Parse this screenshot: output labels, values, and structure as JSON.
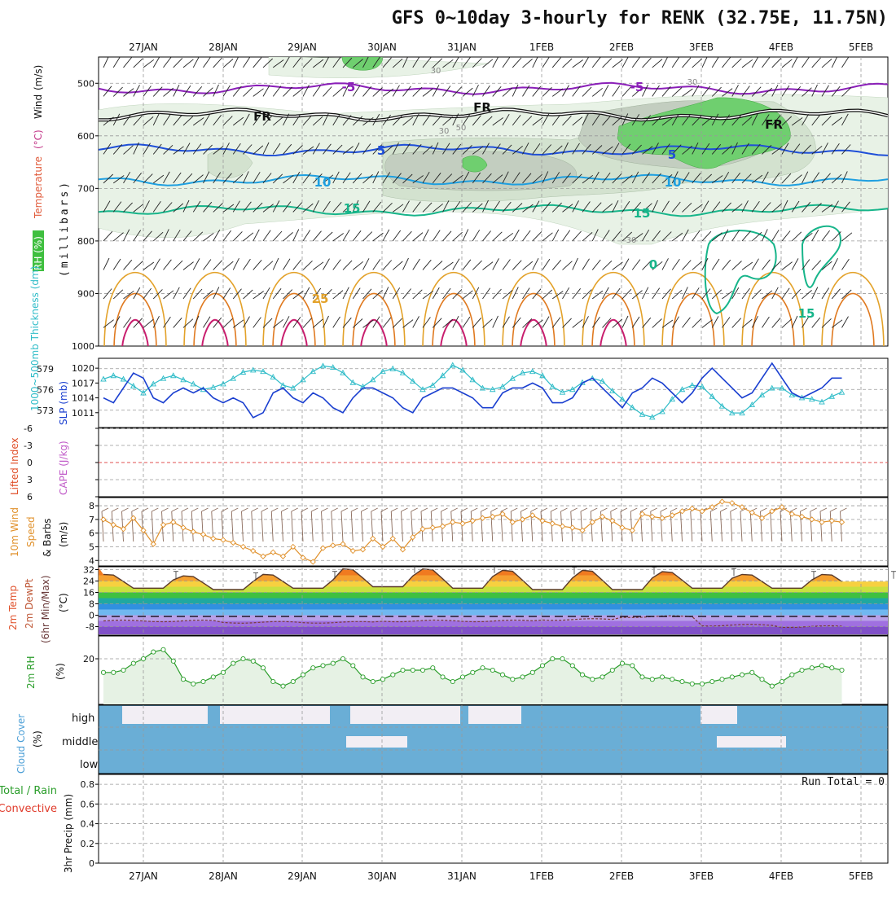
{
  "title": "GFS 0~10day 3-hourly for RENK (32.75E, 11.75N)",
  "chart_data": [
    {
      "type": "contour",
      "name": "Vertical cross-section",
      "date_labels": [
        "27JAN",
        "28JAN",
        "29JAN",
        "30JAN",
        "31JAN",
        "1FEB",
        "2FEB",
        "3FEB",
        "4FEB",
        "5FEB"
      ],
      "ylabel_parts": {
        "wind": "Wind",
        "wind_units": "(m/s)",
        "temp": "Temperature",
        "temp_units": "(°C)",
        "rh": "RH (%)",
        "pressure": "(millibars)"
      },
      "ylim": [
        1000,
        450
      ],
      "y_ticks": [
        "500",
        "600",
        "700",
        "800",
        "900",
        "1000"
      ],
      "isotherms": [
        {
          "label": "-5",
          "pressure_mb": 510,
          "color": "#8a1fb8"
        },
        {
          "label": "FR",
          "pressure_mb": 560,
          "color": "#111111"
        },
        {
          "label": "5",
          "pressure_mb": 627,
          "color": "#1f4fd8"
        },
        {
          "label": "10",
          "pressure_mb": 684,
          "color": "#1e9fe0"
        },
        {
          "label": "15",
          "pressure_mb": 742,
          "color": "#17b58a"
        }
      ],
      "inline_labels": [
        "-5",
        "-5",
        "FR",
        "FR",
        "FR",
        "5",
        "5",
        "10",
        "10",
        "15",
        "15",
        "0",
        "15",
        "25",
        "30",
        "30",
        "30",
        "30",
        "50"
      ],
      "rh_shading_levels": [
        "30",
        "50",
        "70",
        "90"
      ]
    },
    {
      "type": "line",
      "name": "Thickness / SLP",
      "ylabel_left": "1000~500mb Thickness (dm)",
      "ylabel_right": "SLP (mb)",
      "left_ticks": [
        "579",
        "576",
        "573"
      ],
      "right_ticks": [
        "1020",
        "1017",
        "1014",
        "1011"
      ],
      "series": [
        {
          "name": "SLP (mb)",
          "color": "#1a3fd0",
          "values": [
            1014,
            1013,
            1016,
            1019,
            1018,
            1014,
            1013,
            1015,
            1016,
            1015,
            1016,
            1014,
            1013,
            1014,
            1013,
            1010,
            1011,
            1015,
            1016,
            1014,
            1013,
            1015,
            1014,
            1012,
            1011,
            1014,
            1016,
            1016,
            1015,
            1014,
            1012,
            1011,
            1014,
            1015,
            1016,
            1016,
            1015,
            1014,
            1012,
            1012,
            1015,
            1016,
            1016,
            1017,
            1016,
            1013,
            1013,
            1014,
            1017,
            1018,
            1016,
            1014,
            1012,
            1015,
            1016,
            1018,
            1017,
            1015,
            1013,
            1015,
            1018,
            1020,
            1018,
            1016,
            1014,
            1015,
            1018,
            1021,
            1018,
            1015,
            1014,
            1015,
            1016,
            1018,
            1018
          ]
        },
        {
          "name": "1000-500mb Thickness (dm)",
          "color": "#2fbcc8",
          "values": [
            577.5,
            578.0,
            577.5,
            576.5,
            575.5,
            576.8,
            577.6,
            578.0,
            577.4,
            576.8,
            576.0,
            576.3,
            576.8,
            577.6,
            578.5,
            578.8,
            578.6,
            577.8,
            576.6,
            576.2,
            577.4,
            578.6,
            579.4,
            579.2,
            578.4,
            577.0,
            576.4,
            577.4,
            578.6,
            579.0,
            578.4,
            577.2,
            576.0,
            576.6,
            578.0,
            579.5,
            578.8,
            577.4,
            576.2,
            576.0,
            576.4,
            577.6,
            578.4,
            578.6,
            578.0,
            576.4,
            575.6,
            576.0,
            577.0,
            577.6,
            577.2,
            575.8,
            574.6,
            573.4,
            572.4,
            572.0,
            572.8,
            574.6,
            576.0,
            576.6,
            576.4,
            575.0,
            573.6,
            572.6,
            572.6,
            573.8,
            575.2,
            576.2,
            576.2,
            575.2,
            574.8,
            574.6,
            574.2,
            575.0,
            575.6
          ]
        }
      ]
    },
    {
      "type": "line",
      "name": "Lifted Index / CAPE",
      "ylabel_li": "Lifted Index",
      "ylabel_cape": "CAPE (J/kg)",
      "y_ticks": [
        "-6",
        "-3",
        "0",
        "3",
        "6"
      ],
      "values": []
    },
    {
      "type": "line",
      "name": "10m Wind Speed & Barbs",
      "ylabel": "10m Wind Speed & Barbs (m/s)",
      "ylabel_parts": [
        "10m Wind",
        "Speed",
        "& Barbs",
        "(m/s)"
      ],
      "ylim": [
        3.6,
        8.6
      ],
      "y_ticks": [
        "8",
        "7",
        "6",
        "5",
        "4"
      ],
      "color": "#e0902a",
      "values": [
        7.0,
        6.6,
        6.3,
        7.1,
        6.2,
        5.2,
        6.6,
        6.8,
        6.4,
        6.1,
        5.9,
        5.6,
        5.5,
        5.3,
        5.0,
        4.7,
        4.3,
        4.6,
        4.3,
        5.0,
        4.2,
        3.9,
        4.9,
        5.1,
        5.2,
        4.7,
        4.8,
        5.6,
        5.0,
        5.6,
        4.8,
        5.7,
        6.3,
        6.4,
        6.5,
        6.8,
        6.7,
        6.9,
        7.1,
        7.2,
        7.4,
        6.8,
        7.0,
        7.3,
        6.9,
        6.7,
        6.5,
        6.4,
        6.2,
        6.8,
        7.2,
        6.9,
        6.4,
        6.2,
        7.4,
        7.2,
        7.1,
        7.3,
        7.6,
        7.8,
        7.6,
        7.9,
        8.3,
        8.2,
        7.9,
        7.5,
        7.1,
        7.6,
        7.9,
        7.4,
        7.2,
        7.0,
        6.8,
        6.9,
        6.8
      ]
    },
    {
      "type": "line",
      "name": "2m Temp / DewPt",
      "ylabel_parts": [
        "2m Temp",
        "2m DewPt",
        "(6hr Min/Max)",
        "(°C)"
      ],
      "ylim": [
        -14,
        34
      ],
      "y_ticks": [
        "32",
        "24",
        "16",
        "8",
        "0",
        "-8"
      ],
      "temp_max_days": [
        29,
        28,
        29,
        33,
        33,
        32,
        32,
        31,
        29,
        29
      ],
      "temp_min_days": [
        19,
        18,
        19,
        20,
        19,
        18,
        18,
        19,
        19,
        19
      ],
      "dewpoint_days": [
        -4,
        -5,
        -5,
        -4,
        -4,
        -3,
        -1,
        -7,
        -8,
        -8
      ]
    },
    {
      "type": "line",
      "name": "2m RH",
      "ylabel_parts": [
        "2m RH",
        "(%)"
      ],
      "ylim": [
        0,
        30
      ],
      "y_ticks": [
        "20"
      ],
      "color": "#2a9d2a",
      "values": [
        14,
        14,
        15,
        18,
        20,
        23,
        24,
        19,
        11,
        9,
        10,
        12,
        14,
        18,
        20,
        19,
        16,
        10,
        8,
        10,
        13,
        16,
        17,
        18,
        20,
        17,
        12,
        10,
        11,
        13,
        15,
        15,
        15,
        16,
        12,
        10,
        12,
        14,
        16,
        15,
        13,
        11,
        12,
        14,
        17,
        20,
        20,
        17,
        13,
        11,
        12,
        15,
        18,
        17,
        12,
        11,
        12,
        11,
        10,
        9,
        9,
        10,
        11,
        12,
        13,
        14,
        11,
        8,
        10,
        13,
        15,
        16,
        17,
        16,
        15
      ]
    },
    {
      "type": "area",
      "name": "Cloud Cover",
      "ylabel_parts": [
        "Cloud Cover",
        "(%)"
      ],
      "levels": [
        "high",
        "middle",
        "low"
      ],
      "high_clear_x": [
        [
          150,
          255
        ],
        [
          270,
          405
        ],
        [
          430,
          565
        ],
        [
          575,
          640
        ],
        [
          860,
          905
        ]
      ],
      "middle_clear_x": [
        [
          425,
          500
        ],
        [
          880,
          965
        ]
      ]
    },
    {
      "type": "bar",
      "name": "3hr Precip",
      "ylabel_parts": [
        "3hr Precip (mm)",
        "Total / Rain",
        "Convective"
      ],
      "ylim": [
        0,
        0.9
      ],
      "y_ticks": [
        "0.8",
        "0.6",
        "0.4",
        "0.2",
        "0"
      ],
      "run_total": "Run Total = 0",
      "values": []
    }
  ]
}
